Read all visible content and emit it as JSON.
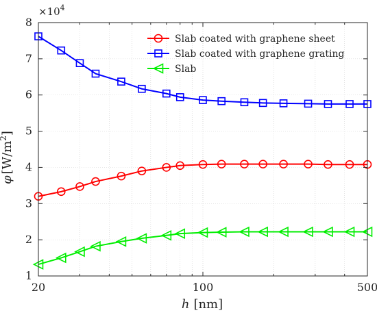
{
  "chart_data": {
    "type": "line",
    "x_scale": "log",
    "x": [
      20,
      25,
      30,
      35,
      45,
      55,
      70,
      80,
      100,
      120,
      150,
      180,
      220,
      280,
      340,
      420,
      500
    ],
    "xticks": [
      "20",
      "100",
      "500"
    ],
    "xlim": [
      20,
      500
    ],
    "ylim": [
      1,
      8
    ],
    "yticks": [
      "1",
      "2",
      "3",
      "4",
      "5",
      "6",
      "7",
      "8"
    ],
    "y_multiplier": "×10",
    "y_multiplier_exp": "4",
    "xlabel_var": "h",
    "xlabel_unit": "[nm]",
    "ylabel_var": "φ",
    "ylabel_unit": "[W/m",
    "ylabel_unit_exp": "2",
    "ylabel_unit_end": "]",
    "grid": true,
    "legend_position": "top-right",
    "series": [
      {
        "name": "Slab coated with graphene sheet",
        "color": "#ff0000",
        "marker": "circle",
        "values": [
          3.2,
          3.33,
          3.47,
          3.61,
          3.76,
          3.9,
          4.0,
          4.05,
          4.08,
          4.09,
          4.09,
          4.09,
          4.09,
          4.09,
          4.08,
          4.08,
          4.08
        ]
      },
      {
        "name": "Slab coated with graphene grating",
        "color": "#0000ff",
        "marker": "square",
        "values": [
          7.62,
          7.23,
          6.88,
          6.59,
          6.37,
          6.17,
          6.04,
          5.94,
          5.86,
          5.83,
          5.8,
          5.78,
          5.77,
          5.76,
          5.75,
          5.75,
          5.75
        ]
      },
      {
        "name": "Slab",
        "color": "#00ee00",
        "marker": "triangle-left",
        "values": [
          1.32,
          1.5,
          1.67,
          1.82,
          1.95,
          2.04,
          2.12,
          2.17,
          2.2,
          2.21,
          2.22,
          2.22,
          2.22,
          2.22,
          2.22,
          2.22,
          2.22
        ]
      }
    ]
  }
}
